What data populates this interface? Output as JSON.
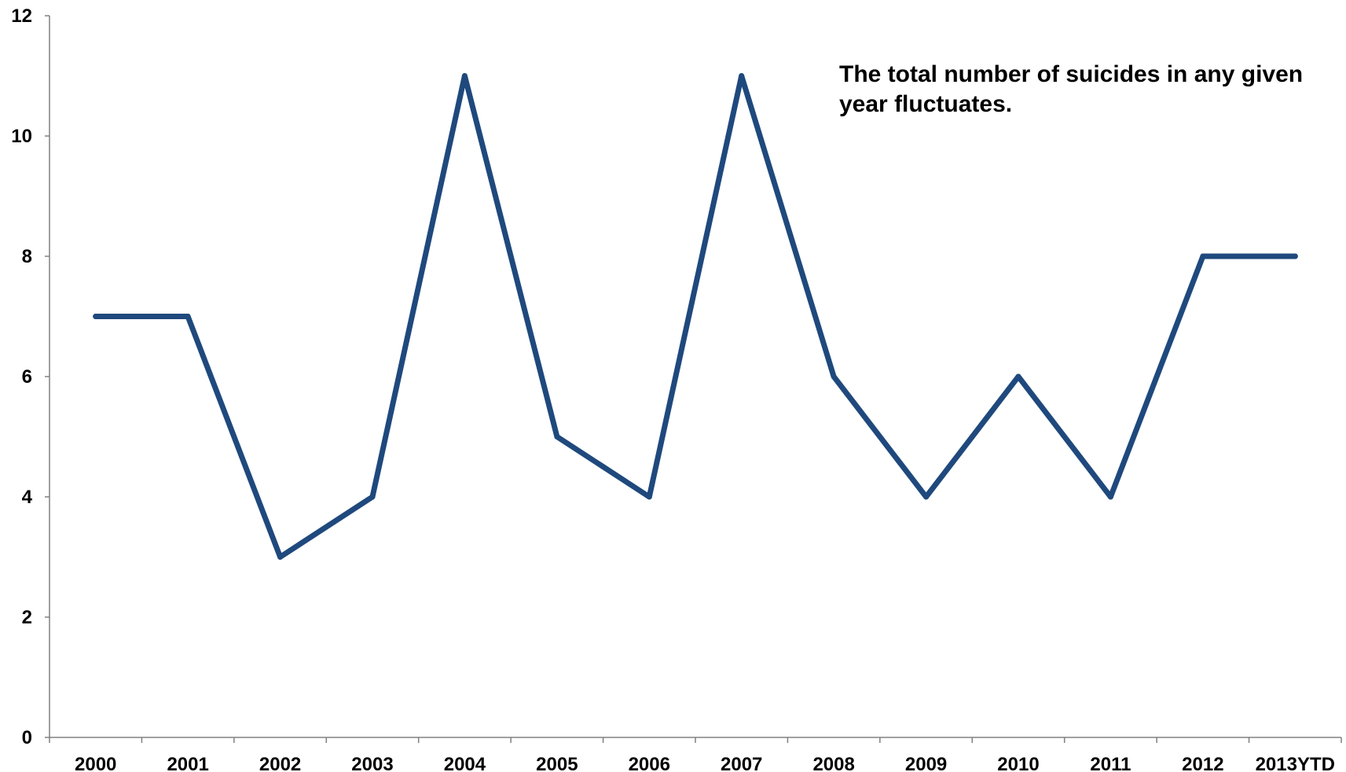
{
  "chart_data": {
    "type": "line",
    "categories": [
      "2000",
      "2001",
      "2002",
      "2003",
      "2004",
      "2005",
      "2006",
      "2007",
      "2008",
      "2009",
      "2010",
      "2011",
      "2012",
      "2013YTD"
    ],
    "series": [
      {
        "values": [
          7,
          7,
          3,
          4,
          11,
          5,
          4,
          11,
          6,
          4,
          6,
          4,
          8,
          8
        ],
        "color": "#1F497D"
      }
    ],
    "title": "",
    "xlabel": "",
    "ylabel": "",
    "ylim": [
      0,
      12
    ],
    "yticks": [
      "0",
      "2",
      "4",
      "6",
      "8",
      "10",
      "12"
    ],
    "annotation": "The total number of suicides in any given year fluctuates.",
    "grid": false,
    "legend": "none"
  }
}
